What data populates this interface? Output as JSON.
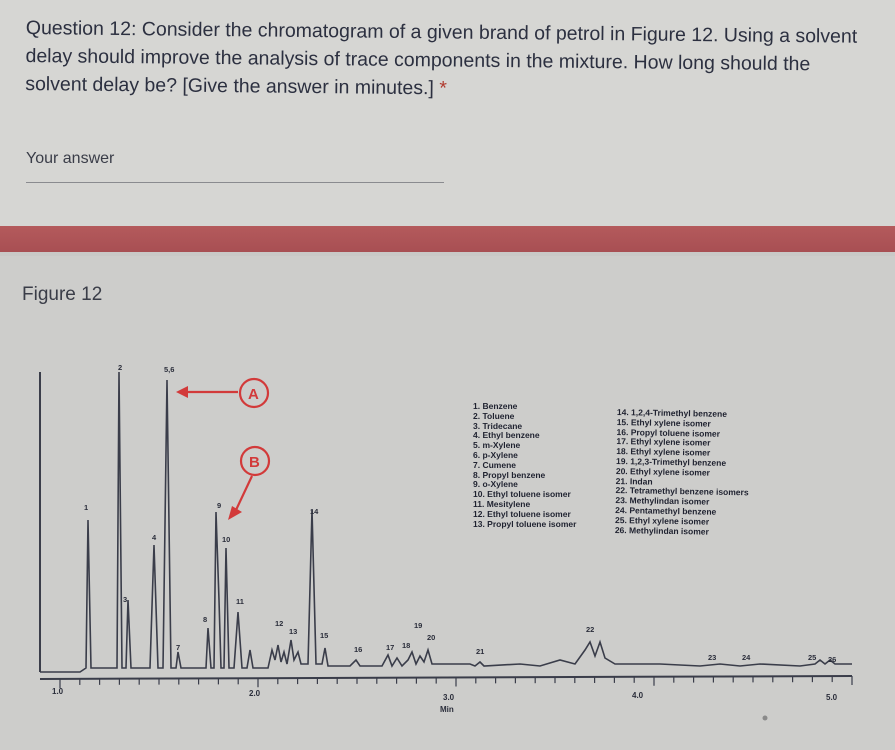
{
  "question": {
    "text": "Question 12: Consider the chromatogram of a given brand of petrol in Figure 12. Using a solvent delay should improve the analysis of trace components in the mixture. How long should the solvent delay be? [Give the answer in minutes.]",
    "required_marker": "*",
    "answer_label": "Your answer",
    "answer_value": ""
  },
  "figure": {
    "title": "Figure 12",
    "callouts": [
      "A",
      "B"
    ],
    "x_axis": {
      "ticks": [
        "1.0",
        "2.0",
        "3.0",
        "4.0",
        "5.0"
      ],
      "unit": "Min"
    },
    "peak_labels": [
      "1",
      "2",
      "3",
      "4",
      "5,6",
      "7",
      "8",
      "9",
      "10",
      "11",
      "12",
      "13",
      "14",
      "15",
      "16",
      "17",
      "18",
      "19",
      "20",
      "21",
      "22",
      "23",
      "24",
      "25",
      "26"
    ],
    "legend_left": [
      "1. Benzene",
      "2. Toluene",
      "3. Tridecane",
      "4. Ethyl benzene",
      "5. m-Xylene",
      "6. p-Xylene",
      "7. Cumene",
      "8. Propyl benzene",
      "9. o-Xylene",
      "10. Ethyl toluene isomer",
      "11. Mesitylene",
      "12. Ethyl toluene isomer",
      "13. Propyl toluene isomer"
    ],
    "legend_right": [
      "14. 1,2,4-Trimethyl benzene",
      "15. Ethyl xylene isomer",
      "16. Propyl toluene isomer",
      "17. Ethyl xylene isomer",
      "18. Ethyl xylene isomer",
      "19. 1,2,3-Trimethyl benzene",
      "20. Ethyl xylene isomer",
      "21. Indan",
      "22. Tetramethyl benzene isomers",
      "23. Methylindan isomer",
      "24. Pentamethyl benzene",
      "25. Ethyl xylene isomer",
      "26. Methylindan isomer"
    ],
    "colors": {
      "callout": "#d23a3a",
      "trace": "#3a3d4a",
      "band": "#b45a5c"
    }
  }
}
